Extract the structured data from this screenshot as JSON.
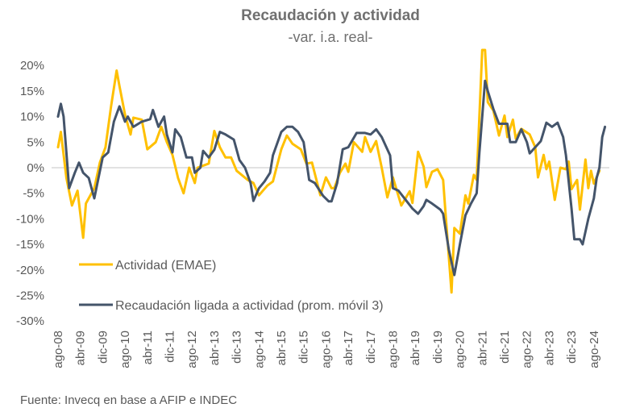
{
  "chart_data": {
    "type": "line",
    "title": "Recaudación y actividad",
    "subtitle": "-var. i.a. real-",
    "xlabel": "",
    "ylabel": "",
    "x_unit": "months since ago-08",
    "ylim": [
      -30,
      20
    ],
    "yticks": [
      "20%",
      "15%",
      "10%",
      "5%",
      "0%",
      "-5%",
      "-10%",
      "-15%",
      "-20%",
      "-25%",
      "-30%"
    ],
    "ytick_values": [
      20,
      15,
      10,
      5,
      0,
      -5,
      -10,
      -15,
      -20,
      -25,
      -30
    ],
    "xticks": [
      "ago-08",
      "abr-09",
      "dic-09",
      "ago-10",
      "abr-11",
      "dic-11",
      "ago-12",
      "abr-13",
      "dic-13",
      "ago-14",
      "abr-15",
      "dic-15",
      "ago-16",
      "abr-17",
      "dic-17",
      "ago-18",
      "abr-19",
      "dic-19",
      "ago-20",
      "abr-21",
      "dic-21",
      "ago-22",
      "abr-23",
      "dic-23",
      "ago-24"
    ],
    "grid": "zero-line only",
    "legend_placement": "bottom-left inside plot",
    "series": [
      {
        "name": "Actividad (EMAE)",
        "color": "#FFC000",
        "points": [
          [
            0,
            4
          ],
          [
            1,
            7
          ],
          [
            3,
            -2
          ],
          [
            5,
            -7.4
          ],
          [
            7,
            -4.5
          ],
          [
            9,
            -13.7
          ],
          [
            10,
            -7
          ],
          [
            13,
            -4
          ],
          [
            15,
            1
          ],
          [
            17,
            4
          ],
          [
            19,
            12
          ],
          [
            21,
            19
          ],
          [
            22,
            16
          ],
          [
            24,
            10.4
          ],
          [
            26,
            6.5
          ],
          [
            27,
            9.8
          ],
          [
            30,
            9.4
          ],
          [
            32,
            3.6
          ],
          [
            35,
            5
          ],
          [
            37,
            8
          ],
          [
            39,
            5
          ],
          [
            41,
            2.5
          ],
          [
            43,
            -2
          ],
          [
            45,
            -5
          ],
          [
            47,
            0
          ],
          [
            49,
            -3
          ],
          [
            50,
            0
          ],
          [
            54,
            0.8
          ],
          [
            56,
            7.2
          ],
          [
            58,
            4
          ],
          [
            60,
            2
          ],
          [
            62,
            2
          ],
          [
            64,
            -0.6
          ],
          [
            68,
            -2.4
          ],
          [
            70,
            -3
          ],
          [
            72,
            -5.4
          ],
          [
            75,
            -3.5
          ],
          [
            77,
            -2.7
          ],
          [
            80,
            3.6
          ],
          [
            82,
            6.3
          ],
          [
            84,
            4.7
          ],
          [
            87,
            3.6
          ],
          [
            89,
            0.8
          ],
          [
            91,
            1
          ],
          [
            94,
            -5.4
          ],
          [
            96,
            -1.9
          ],
          [
            98,
            -4
          ],
          [
            99,
            -4
          ],
          [
            101,
            -1
          ],
          [
            103,
            0.8
          ],
          [
            104,
            -0.8
          ],
          [
            106,
            5
          ],
          [
            109,
            3.1
          ],
          [
            110,
            6
          ],
          [
            112,
            3.1
          ],
          [
            114,
            5.2
          ],
          [
            116,
            0
          ],
          [
            118,
            -5.8
          ],
          [
            120,
            -1.9
          ],
          [
            123,
            -7.4
          ],
          [
            126,
            -4.6
          ],
          [
            127,
            -6.9
          ],
          [
            129,
            3.1
          ],
          [
            131,
            0.2
          ],
          [
            132,
            -3.8
          ],
          [
            134,
            -0.8
          ],
          [
            136,
            -0.3
          ],
          [
            138,
            -2.4
          ],
          [
            139,
            -10
          ],
          [
            141,
            -24.4
          ],
          [
            142,
            -11.8
          ],
          [
            144,
            -12.9
          ],
          [
            146,
            -5.4
          ],
          [
            147,
            -7
          ],
          [
            149,
            -1.4
          ],
          [
            150,
            -2.4
          ],
          [
            152,
            30
          ],
          [
            153,
            30
          ],
          [
            154,
            12.8
          ],
          [
            156,
            11.2
          ],
          [
            158,
            6.3
          ],
          [
            160,
            10.2
          ],
          [
            161,
            6
          ],
          [
            163,
            9.4
          ],
          [
            164,
            5.7
          ],
          [
            166,
            7.6
          ],
          [
            169,
            6.5
          ],
          [
            171,
            4
          ],
          [
            172,
            -1.9
          ],
          [
            174,
            2.5
          ],
          [
            175,
            -0.3
          ],
          [
            176,
            1.2
          ],
          [
            178,
            -6.3
          ],
          [
            180,
            0
          ],
          [
            182,
            -0.3
          ],
          [
            183,
            1.2
          ],
          [
            184,
            -4.2
          ],
          [
            186,
            -2.4
          ],
          [
            187,
            -8.2
          ],
          [
            189,
            1.6
          ],
          [
            190,
            -4
          ],
          [
            191,
            -0.6
          ],
          [
            192,
            -3.1
          ],
          [
            194,
            -0.6
          ]
        ]
      },
      {
        "name": "Recaudación ligada a actividad (prom. móvil 3)",
        "color": "#44546A",
        "points": [
          [
            0,
            10
          ],
          [
            1,
            12.5
          ],
          [
            2,
            10
          ],
          [
            4,
            -4
          ],
          [
            6,
            -1
          ],
          [
            7.5,
            1
          ],
          [
            9,
            -1
          ],
          [
            11,
            -2
          ],
          [
            13,
            -6
          ],
          [
            16,
            2
          ],
          [
            18,
            3
          ],
          [
            20,
            9
          ],
          [
            22,
            12
          ],
          [
            24,
            9
          ],
          [
            25,
            10
          ],
          [
            27,
            8
          ],
          [
            30,
            9
          ],
          [
            33,
            9.5
          ],
          [
            34,
            11.3
          ],
          [
            36,
            8
          ],
          [
            38,
            10
          ],
          [
            39,
            6.5
          ],
          [
            41,
            3
          ],
          [
            42,
            7.5
          ],
          [
            44,
            6
          ],
          [
            46,
            2
          ],
          [
            48,
            2
          ],
          [
            49,
            -1
          ],
          [
            51,
            0
          ],
          [
            52,
            3.3
          ],
          [
            54,
            2
          ],
          [
            56,
            3.5
          ],
          [
            58,
            7
          ],
          [
            60,
            6.5
          ],
          [
            63,
            5.5
          ],
          [
            65,
            1.5
          ],
          [
            67,
            0
          ],
          [
            69,
            -3
          ],
          [
            70,
            -6.5
          ],
          [
            72,
            -4
          ],
          [
            74,
            -2.7
          ],
          [
            76,
            -1
          ],
          [
            77,
            2.4
          ],
          [
            80,
            7
          ],
          [
            82,
            8
          ],
          [
            84,
            8
          ],
          [
            86,
            7
          ],
          [
            88,
            5
          ],
          [
            90,
            -2.4
          ],
          [
            92,
            -3
          ],
          [
            95,
            -5.5
          ],
          [
            97,
            -6.6
          ],
          [
            98,
            -6.6
          ],
          [
            100,
            -3
          ],
          [
            102,
            3.6
          ],
          [
            104,
            4
          ],
          [
            107,
            6.8
          ],
          [
            110,
            6.8
          ],
          [
            112,
            6.5
          ],
          [
            114,
            7.5
          ],
          [
            116,
            6
          ],
          [
            119,
            2.4
          ],
          [
            120,
            -4
          ],
          [
            122,
            -4.5
          ],
          [
            125,
            -6.6
          ],
          [
            127,
            -8
          ],
          [
            129,
            -9
          ],
          [
            131,
            -7.5
          ],
          [
            132,
            -6.3
          ],
          [
            134,
            -7
          ],
          [
            137,
            -8.2
          ],
          [
            138,
            -9
          ],
          [
            140,
            -16
          ],
          [
            142,
            -21
          ],
          [
            144,
            -15
          ],
          [
            146,
            -9.3
          ],
          [
            148,
            -7
          ],
          [
            150,
            -5
          ],
          [
            151,
            3
          ],
          [
            153,
            17
          ],
          [
            154,
            15
          ],
          [
            156,
            11.5
          ],
          [
            158,
            8.6
          ],
          [
            161,
            8.6
          ],
          [
            162,
            5
          ],
          [
            164,
            5
          ],
          [
            166,
            7.5
          ],
          [
            168,
            5
          ],
          [
            169,
            2.8
          ],
          [
            171,
            4
          ],
          [
            173,
            5.2
          ],
          [
            175,
            8.8
          ],
          [
            177,
            8
          ],
          [
            179,
            8.8
          ],
          [
            181,
            6
          ],
          [
            182,
            2.4
          ],
          [
            184,
            -8
          ],
          [
            185,
            -14
          ],
          [
            187,
            -14
          ],
          [
            188,
            -15
          ],
          [
            190,
            -10
          ],
          [
            192,
            -6
          ],
          [
            193,
            -2
          ],
          [
            194,
            0
          ],
          [
            195,
            6
          ],
          [
            196,
            8
          ]
        ]
      }
    ],
    "source": "Fuente: Invecq en base a AFIP e INDEC"
  }
}
